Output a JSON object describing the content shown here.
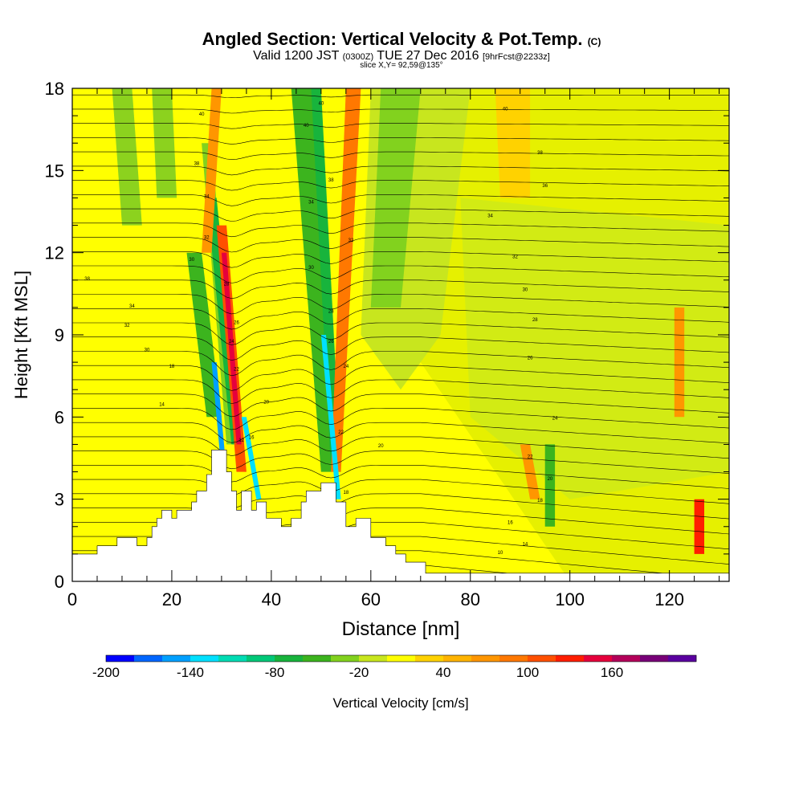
{
  "title": {
    "main": "Angled Section: Vertical Velocity & Pot.Temp.",
    "units": "(C)",
    "valid_prefix": "Valid 1200 JST",
    "valid_utc": "(0300Z)",
    "valid_date": "TUE 27 Dec 2016",
    "forecast": "[9hrFcst@2233z]",
    "slice": "slice X,Y= 92,59@135°"
  },
  "chart_data": {
    "type": "heatmap",
    "xlabel": "Distance [nm]",
    "ylabel": "Height [Kft MSL]",
    "xlim": [
      0,
      132
    ],
    "ylim": [
      0,
      18
    ],
    "x_ticks": [
      0,
      20,
      40,
      60,
      80,
      100,
      120
    ],
    "y_ticks": [
      0,
      3,
      6,
      9,
      12,
      15,
      18
    ],
    "terrain": [
      [
        0,
        1
      ],
      [
        5,
        1
      ],
      [
        5,
        1.3
      ],
      [
        9,
        1.3
      ],
      [
        9,
        1.6
      ],
      [
        13,
        1.6
      ],
      [
        13,
        1.3
      ],
      [
        15,
        1.3
      ],
      [
        15,
        1.6
      ],
      [
        16,
        1.6
      ],
      [
        16,
        2.0
      ],
      [
        17,
        2.0
      ],
      [
        17,
        2.3
      ],
      [
        18,
        2.3
      ],
      [
        18,
        2.6
      ],
      [
        20,
        2.6
      ],
      [
        20,
        2.3
      ],
      [
        21,
        2.3
      ],
      [
        21,
        2.6
      ],
      [
        24,
        2.6
      ],
      [
        24,
        2.9
      ],
      [
        25,
        2.9
      ],
      [
        25,
        3.3
      ],
      [
        27,
        3.3
      ],
      [
        27,
        3.9
      ],
      [
        28,
        3.9
      ],
      [
        28,
        4.8
      ],
      [
        31,
        4.8
      ],
      [
        31,
        4.0
      ],
      [
        32,
        4.0
      ],
      [
        32,
        3.3
      ],
      [
        33,
        3.3
      ],
      [
        33,
        2.6
      ],
      [
        34,
        2.6
      ],
      [
        34,
        3.3
      ],
      [
        36,
        3.3
      ],
      [
        36,
        2.6
      ],
      [
        37,
        2.6
      ],
      [
        37,
        2.9
      ],
      [
        39,
        2.9
      ],
      [
        39,
        2.3
      ],
      [
        42,
        2.3
      ],
      [
        42,
        2.0
      ],
      [
        44,
        2.0
      ],
      [
        44,
        2.3
      ],
      [
        46,
        2.3
      ],
      [
        46,
        2.9
      ],
      [
        47,
        2.9
      ],
      [
        47,
        3.3
      ],
      [
        50,
        3.3
      ],
      [
        50,
        3.6
      ],
      [
        53,
        3.6
      ],
      [
        53,
        2.9
      ],
      [
        55,
        2.9
      ],
      [
        55,
        2.0
      ],
      [
        57,
        2.0
      ],
      [
        57,
        2.3
      ],
      [
        60,
        2.3
      ],
      [
        60,
        1.6
      ],
      [
        63,
        1.6
      ],
      [
        63,
        1.3
      ],
      [
        65,
        1.3
      ],
      [
        65,
        1.0
      ],
      [
        67,
        1.0
      ],
      [
        67,
        0.7
      ],
      [
        71,
        0.7
      ],
      [
        71,
        0.3
      ],
      [
        132,
        0.3
      ]
    ],
    "contour_labels": [
      {
        "x": 3,
        "y": 11.0,
        "text": "38"
      },
      {
        "x": 12,
        "y": 10.0,
        "text": "34"
      },
      {
        "x": 11,
        "y": 9.3,
        "text": "32"
      },
      {
        "x": 15,
        "y": 8.4,
        "text": "30"
      },
      {
        "x": 20,
        "y": 7.8,
        "text": "18"
      },
      {
        "x": 18,
        "y": 6.4,
        "text": "14"
      },
      {
        "x": 26,
        "y": 17.0,
        "text": "40"
      },
      {
        "x": 25,
        "y": 15.2,
        "text": "38"
      },
      {
        "x": 27,
        "y": 14.0,
        "text": "34"
      },
      {
        "x": 27,
        "y": 12.5,
        "text": "32"
      },
      {
        "x": 24,
        "y": 11.7,
        "text": "30"
      },
      {
        "x": 31,
        "y": 10.8,
        "text": "28"
      },
      {
        "x": 33,
        "y": 9.4,
        "text": "26"
      },
      {
        "x": 32,
        "y": 8.7,
        "text": "24"
      },
      {
        "x": 33,
        "y": 7.7,
        "text": "22"
      },
      {
        "x": 39,
        "y": 6.5,
        "text": "20"
      },
      {
        "x": 36,
        "y": 5.2,
        "text": "16"
      },
      {
        "x": 34,
        "y": 5.1,
        "text": "12"
      },
      {
        "x": 50,
        "y": 17.4,
        "text": "40"
      },
      {
        "x": 47,
        "y": 16.6,
        "text": "40"
      },
      {
        "x": 52,
        "y": 14.6,
        "text": "38"
      },
      {
        "x": 48,
        "y": 13.8,
        "text": "34"
      },
      {
        "x": 56,
        "y": 12.4,
        "text": "32"
      },
      {
        "x": 48,
        "y": 11.4,
        "text": "30"
      },
      {
        "x": 52,
        "y": 9.8,
        "text": "28"
      },
      {
        "x": 52,
        "y": 8.7,
        "text": "26"
      },
      {
        "x": 55,
        "y": 7.8,
        "text": "24"
      },
      {
        "x": 54,
        "y": 5.4,
        "text": "22"
      },
      {
        "x": 62,
        "y": 4.9,
        "text": "20"
      },
      {
        "x": 55,
        "y": 3.2,
        "text": "18"
      },
      {
        "x": 87,
        "y": 17.2,
        "text": "40"
      },
      {
        "x": 94,
        "y": 15.6,
        "text": "38"
      },
      {
        "x": 95,
        "y": 14.4,
        "text": "36"
      },
      {
        "x": 84,
        "y": 13.3,
        "text": "34"
      },
      {
        "x": 89,
        "y": 11.8,
        "text": "32"
      },
      {
        "x": 91,
        "y": 10.6,
        "text": "30"
      },
      {
        "x": 93,
        "y": 9.5,
        "text": "28"
      },
      {
        "x": 92,
        "y": 8.1,
        "text": "26"
      },
      {
        "x": 97,
        "y": 5.9,
        "text": "24"
      },
      {
        "x": 92,
        "y": 4.5,
        "text": "22"
      },
      {
        "x": 96,
        "y": 3.7,
        "text": "20"
      },
      {
        "x": 94,
        "y": 2.9,
        "text": "18"
      },
      {
        "x": 88,
        "y": 2.1,
        "text": "16"
      },
      {
        "x": 91,
        "y": 1.3,
        "text": "14"
      },
      {
        "x": 86,
        "y": 1.0,
        "text": "10"
      }
    ],
    "colorbar": {
      "label": "Vertical Velocity [cm/s]",
      "tick_labels": [
        "-200",
        "-140",
        "-80",
        "-20",
        "40",
        "100",
        "160"
      ],
      "tick_values": [
        -200,
        -140,
        -80,
        -20,
        40,
        100,
        160
      ],
      "colors": [
        "#0000ff",
        "#0066ff",
        "#00a0ff",
        "#00e0ff",
        "#00dcb4",
        "#00c878",
        "#18b43c",
        "#3cb41e",
        "#82d21e",
        "#c8e61e",
        "#ffff00",
        "#ffd200",
        "#ffb400",
        "#ff9600",
        "#ff7800",
        "#ff5000",
        "#ff1e00",
        "#e6003c",
        "#b4005a",
        "#780078",
        "#5a00a0"
      ]
    }
  }
}
